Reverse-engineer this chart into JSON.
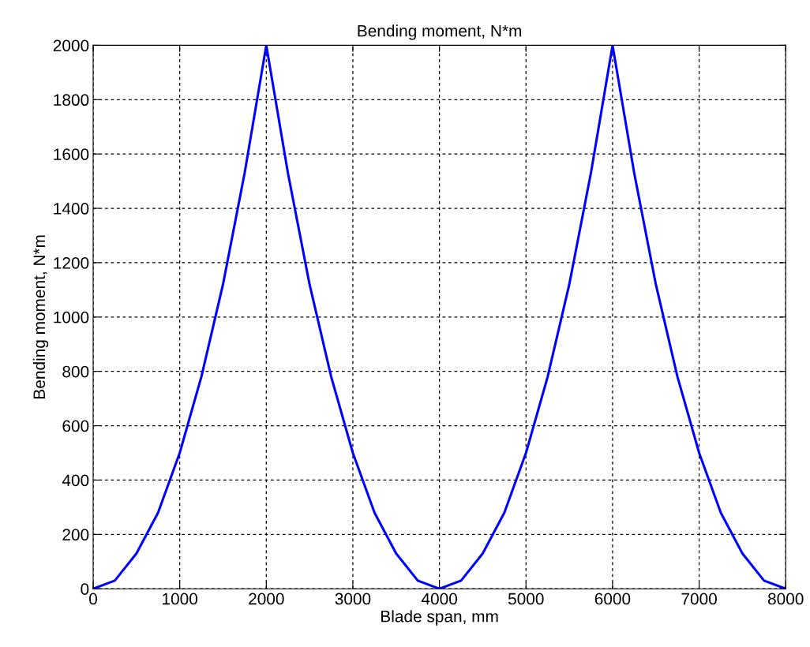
{
  "chart_data": {
    "type": "line",
    "title": "Bending moment, N*m",
    "xlabel": "Blade span, mm",
    "ylabel": "Bending moment, N*m",
    "x": [
      0,
      250,
      500,
      750,
      1000,
      1250,
      1500,
      1750,
      2000,
      2250,
      2500,
      2750,
      3000,
      3250,
      3500,
      3750,
      4000,
      4250,
      4500,
      4750,
      5000,
      5250,
      5500,
      5750,
      6000,
      6250,
      6500,
      6750,
      7000,
      7250,
      7500,
      7750,
      8000
    ],
    "series": [
      {
        "color": "#0000ff",
        "values": [
          0,
          30,
          130,
          280,
          500,
          780,
          1120,
          1530,
          2000,
          1530,
          1120,
          780,
          500,
          280,
          130,
          30,
          0,
          30,
          130,
          280,
          500,
          780,
          1120,
          1530,
          2000,
          1530,
          1120,
          780,
          500,
          280,
          130,
          30,
          0
        ]
      }
    ],
    "xlim": [
      0,
      8000
    ],
    "ylim": [
      0,
      2000
    ],
    "xticks": [
      0,
      1000,
      2000,
      3000,
      4000,
      5000,
      6000,
      7000,
      8000
    ],
    "yticks": [
      0,
      200,
      400,
      600,
      800,
      1000,
      1200,
      1400,
      1600,
      1800,
      2000
    ],
    "grid": true,
    "line_style": "solid",
    "legend": false
  }
}
